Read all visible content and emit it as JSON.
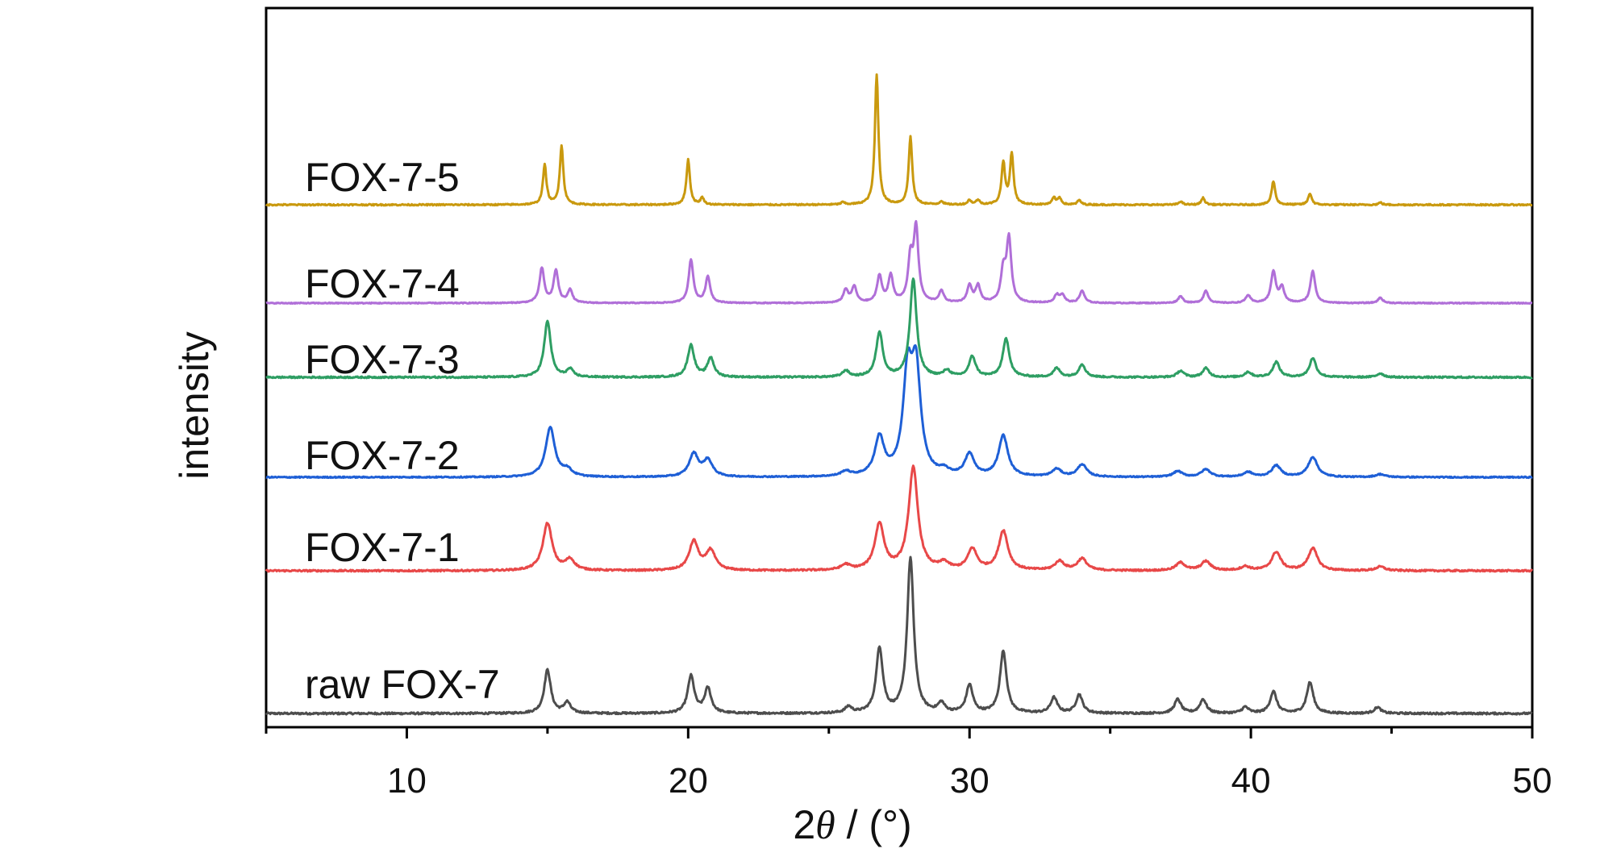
{
  "chart_data": {
    "type": "line",
    "title": "",
    "xlabel_prefix": "2",
    "xlabel_symbol": "θ",
    "xlabel_suffix": " / (°)",
    "ylabel": "intensity",
    "xlim": [
      5,
      50
    ],
    "x_ticks": [
      10,
      20,
      30,
      40,
      50
    ],
    "x_tick_labels": [
      "10",
      "20",
      "30",
      "40",
      "50"
    ],
    "y_ticks_shown": false,
    "grid": false,
    "legend": "none",
    "series": [
      {
        "name": "raw FOX-7",
        "color": "#4d4d4d",
        "peaks": [
          [
            15.0,
            0.28
          ],
          [
            15.7,
            0.07
          ],
          [
            20.1,
            0.24
          ],
          [
            20.7,
            0.16
          ],
          [
            25.7,
            0.04
          ],
          [
            26.8,
            0.42
          ],
          [
            27.9,
            1.0
          ],
          [
            29.0,
            0.06
          ],
          [
            30.0,
            0.18
          ],
          [
            31.2,
            0.4
          ],
          [
            33.0,
            0.1
          ],
          [
            33.9,
            0.12
          ],
          [
            37.4,
            0.09
          ],
          [
            38.3,
            0.09
          ],
          [
            39.8,
            0.04
          ],
          [
            40.8,
            0.14
          ],
          [
            42.1,
            0.2
          ],
          [
            44.5,
            0.04
          ]
        ]
      },
      {
        "name": "FOX-7-1",
        "color": "#e84848",
        "peaks": [
          [
            15.0,
            0.36
          ],
          [
            15.8,
            0.08
          ],
          [
            20.2,
            0.22
          ],
          [
            20.8,
            0.15
          ],
          [
            25.6,
            0.04
          ],
          [
            26.8,
            0.35
          ],
          [
            28.0,
            0.78
          ],
          [
            29.1,
            0.05
          ],
          [
            30.1,
            0.16
          ],
          [
            31.2,
            0.3
          ],
          [
            33.2,
            0.07
          ],
          [
            34.0,
            0.09
          ],
          [
            37.5,
            0.06
          ],
          [
            38.4,
            0.07
          ],
          [
            39.8,
            0.03
          ],
          [
            40.9,
            0.14
          ],
          [
            42.2,
            0.17
          ],
          [
            44.6,
            0.03
          ]
        ]
      },
      {
        "name": "FOX-7-2",
        "color": "#1e5fd6",
        "peaks": [
          [
            15.1,
            0.52
          ],
          [
            15.7,
            0.07
          ],
          [
            20.2,
            0.24
          ],
          [
            20.7,
            0.17
          ],
          [
            25.6,
            0.05
          ],
          [
            26.8,
            0.4
          ],
          [
            27.8,
            1.0
          ],
          [
            28.1,
            1.05
          ],
          [
            29.1,
            0.05
          ],
          [
            30.0,
            0.23
          ],
          [
            31.2,
            0.43
          ],
          [
            33.1,
            0.08
          ],
          [
            34.0,
            0.13
          ],
          [
            37.4,
            0.06
          ],
          [
            38.4,
            0.08
          ],
          [
            39.9,
            0.05
          ],
          [
            40.9,
            0.12
          ],
          [
            42.2,
            0.21
          ],
          [
            44.6,
            0.03
          ]
        ]
      },
      {
        "name": "FOX-7-3",
        "color": "#2e9e63",
        "peaks": [
          [
            15.0,
            0.44
          ],
          [
            15.8,
            0.06
          ],
          [
            20.1,
            0.25
          ],
          [
            20.8,
            0.15
          ],
          [
            25.6,
            0.05
          ],
          [
            26.8,
            0.35
          ],
          [
            28.0,
            0.77
          ],
          [
            29.2,
            0.05
          ],
          [
            30.1,
            0.16
          ],
          [
            31.3,
            0.3
          ],
          [
            33.1,
            0.07
          ],
          [
            34.0,
            0.1
          ],
          [
            37.5,
            0.05
          ],
          [
            38.4,
            0.07
          ],
          [
            39.9,
            0.04
          ],
          [
            40.9,
            0.12
          ],
          [
            42.2,
            0.15
          ],
          [
            44.6,
            0.03
          ]
        ]
      },
      {
        "name": "FOX-7-4",
        "color": "#b06fd8",
        "peaks": [
          [
            14.8,
            0.45
          ],
          [
            15.3,
            0.42
          ],
          [
            15.8,
            0.17
          ],
          [
            20.1,
            0.56
          ],
          [
            20.7,
            0.34
          ],
          [
            25.6,
            0.17
          ],
          [
            25.9,
            0.21
          ],
          [
            26.8,
            0.35
          ],
          [
            27.2,
            0.35
          ],
          [
            27.9,
            0.55
          ],
          [
            28.1,
            0.95
          ],
          [
            29.0,
            0.15
          ],
          [
            30.0,
            0.22
          ],
          [
            30.3,
            0.22
          ],
          [
            31.2,
            0.4
          ],
          [
            31.4,
            0.82
          ],
          [
            33.1,
            0.1
          ],
          [
            33.3,
            0.1
          ],
          [
            34.0,
            0.16
          ],
          [
            37.5,
            0.09
          ],
          [
            38.4,
            0.16
          ],
          [
            39.9,
            0.1
          ],
          [
            40.8,
            0.41
          ],
          [
            41.1,
            0.2
          ],
          [
            42.2,
            0.42
          ],
          [
            44.6,
            0.07
          ]
        ]
      },
      {
        "name": "FOX-7-5",
        "color": "#c9990e",
        "peaks": [
          [
            14.9,
            0.35
          ],
          [
            15.5,
            0.52
          ],
          [
            20.0,
            0.4
          ],
          [
            20.5,
            0.06
          ],
          [
            25.5,
            0.02
          ],
          [
            26.7,
            1.15
          ],
          [
            27.9,
            0.6
          ],
          [
            29.0,
            0.03
          ],
          [
            30.0,
            0.04
          ],
          [
            30.3,
            0.04
          ],
          [
            31.2,
            0.37
          ],
          [
            31.5,
            0.45
          ],
          [
            33.0,
            0.06
          ],
          [
            33.2,
            0.06
          ],
          [
            33.9,
            0.04
          ],
          [
            37.5,
            0.03
          ],
          [
            38.3,
            0.06
          ],
          [
            40.8,
            0.21
          ],
          [
            42.1,
            0.1
          ],
          [
            44.6,
            0.02
          ]
        ]
      }
    ]
  }
}
